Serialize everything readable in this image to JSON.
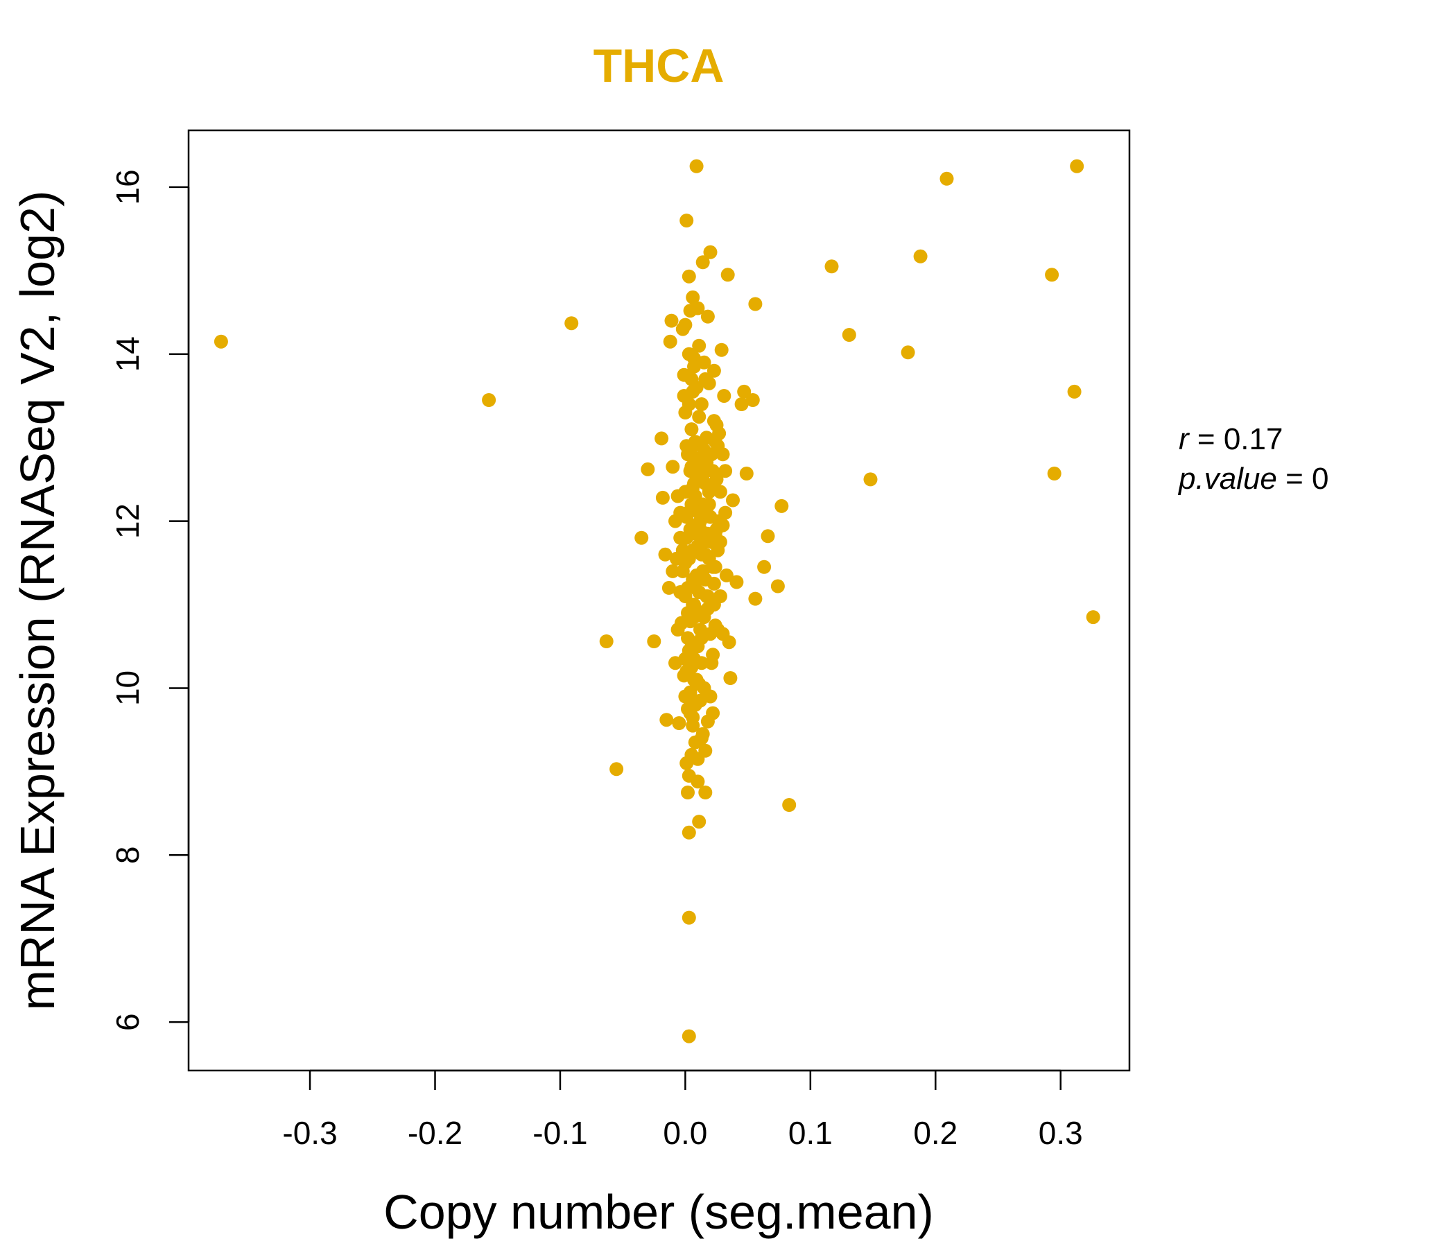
{
  "chart_data": {
    "type": "scatter",
    "title": "THCA",
    "xlabel": "Copy number (seg.mean)",
    "ylabel": "mRNA Expression (RNASeq V2, log2)",
    "xlim": [
      -0.397,
      0.355
    ],
    "ylim": [
      5.42,
      16.68
    ],
    "x_ticks": [
      -0.3,
      -0.2,
      -0.1,
      0.0,
      0.1,
      0.2,
      0.3
    ],
    "x_tick_labels": [
      "-0.3",
      "-0.2",
      "-0.1",
      "0.0",
      "0.1",
      "0.2",
      "0.3"
    ],
    "y_ticks": [
      6,
      8,
      10,
      12,
      14,
      16
    ],
    "y_tick_labels": [
      "6",
      "8",
      "10",
      "12",
      "14",
      "16"
    ],
    "colors": {
      "accent": "#E5AC00",
      "axis": "#000000"
    },
    "stats": {
      "r_label": "r",
      "eq": " = ",
      "r_value": "0.17",
      "p_label": "p.value",
      "p_value": "0"
    },
    "series": [
      {
        "points": [
          [
            -0.371,
            14.15
          ],
          [
            -0.157,
            13.45
          ],
          [
            -0.091,
            14.37
          ],
          [
            -0.063,
            10.56
          ],
          [
            -0.055,
            9.03
          ],
          [
            -0.035,
            11.8
          ],
          [
            -0.03,
            12.62
          ],
          [
            -0.025,
            10.56
          ],
          [
            -0.019,
            12.99
          ],
          [
            -0.018,
            12.28
          ],
          [
            -0.016,
            11.6
          ],
          [
            -0.015,
            9.62
          ],
          [
            -0.013,
            11.2
          ],
          [
            -0.012,
            14.15
          ],
          [
            -0.011,
            14.4
          ],
          [
            -0.01,
            12.65
          ],
          [
            -0.008,
            10.3
          ],
          [
            -0.007,
            11.55
          ],
          [
            -0.005,
            9.58
          ],
          [
            -0.004,
            11.8
          ],
          [
            -0.003,
            10.78
          ],
          [
            -0.002,
            14.3
          ],
          [
            -0.001,
            13.75
          ],
          [
            0.0,
            13.3
          ],
          [
            0.001,
            12.05
          ],
          [
            0.001,
            15.6
          ],
          [
            0.002,
            8.75
          ],
          [
            0.002,
            11.2
          ],
          [
            0.003,
            8.27
          ],
          [
            0.003,
            7.25
          ],
          [
            0.003,
            5.83
          ],
          [
            0.003,
            14.93
          ],
          [
            0.004,
            14.52
          ],
          [
            0.004,
            12.85
          ],
          [
            0.005,
            9.2
          ],
          [
            0.005,
            10.55
          ],
          [
            0.005,
            11.85
          ],
          [
            0.006,
            13.55
          ],
          [
            0.006,
            12.4
          ],
          [
            0.006,
            14.68
          ],
          [
            0.007,
            13.95
          ],
          [
            0.007,
            11.0
          ],
          [
            0.007,
            10.1
          ],
          [
            0.008,
            12.95
          ],
          [
            0.008,
            9.8
          ],
          [
            0.009,
            16.25
          ],
          [
            0.01,
            8.88
          ],
          [
            0.01,
            14.55
          ],
          [
            0.011,
            8.4
          ],
          [
            0.011,
            11.65
          ],
          [
            0.012,
            12.7
          ],
          [
            0.013,
            9.4
          ],
          [
            0.014,
            15.1
          ],
          [
            0.015,
            10.0
          ],
          [
            0.016,
            13.7
          ],
          [
            0.016,
            8.75
          ],
          [
            0.017,
            11.1
          ],
          [
            0.018,
            14.45
          ],
          [
            0.019,
            12.2
          ],
          [
            0.02,
            15.22
          ],
          [
            0.021,
            10.3
          ],
          [
            0.022,
            9.7
          ],
          [
            0.023,
            13.2
          ],
          [
            0.024,
            11.45
          ],
          [
            0.025,
            12.5
          ],
          [
            0.026,
            10.7
          ],
          [
            0.027,
            13.05
          ],
          [
            0.028,
            11.75
          ],
          [
            0.029,
            14.05
          ],
          [
            0.03,
            12.8
          ],
          [
            0.031,
            13.5
          ],
          [
            0.032,
            12.6
          ],
          [
            0.033,
            11.35
          ],
          [
            0.034,
            14.95
          ],
          [
            0.035,
            10.55
          ],
          [
            0.036,
            10.12
          ],
          [
            0.038,
            12.25
          ],
          [
            0.041,
            11.27
          ],
          [
            0.045,
            13.4
          ],
          [
            0.047,
            13.55
          ],
          [
            0.049,
            12.57
          ],
          [
            0.054,
            13.45
          ],
          [
            0.056,
            14.6
          ],
          [
            0.056,
            11.07
          ],
          [
            0.063,
            11.45
          ],
          [
            0.066,
            11.82
          ],
          [
            0.074,
            11.22
          ],
          [
            0.077,
            12.18
          ],
          [
            0.083,
            8.6
          ],
          [
            0.117,
            15.05
          ],
          [
            0.131,
            14.23
          ],
          [
            0.148,
            12.5
          ],
          [
            0.178,
            14.02
          ],
          [
            0.188,
            15.17
          ],
          [
            0.209,
            16.1
          ],
          [
            0.293,
            14.95
          ],
          [
            0.295,
            12.57
          ],
          [
            0.311,
            13.55
          ],
          [
            0.313,
            16.25
          ],
          [
            0.326,
            10.85
          ],
          [
            0.0,
            11.5
          ],
          [
            0.002,
            12.1
          ],
          [
            0.004,
            11.9
          ],
          [
            0.006,
            11.3
          ],
          [
            0.008,
            12.3
          ],
          [
            0.01,
            11.7
          ],
          [
            0.012,
            12.0
          ],
          [
            0.014,
            11.4
          ],
          [
            0.016,
            12.45
          ],
          [
            0.018,
            11.85
          ],
          [
            0.002,
            10.9
          ],
          [
            0.004,
            12.6
          ],
          [
            0.006,
            11.0
          ],
          [
            0.008,
            11.2
          ],
          [
            0.01,
            12.75
          ],
          [
            0.012,
            10.7
          ],
          [
            0.014,
            12.2
          ],
          [
            0.016,
            11.6
          ],
          [
            0.018,
            10.95
          ],
          [
            0.02,
            12.05
          ],
          [
            -0.002,
            11.4
          ],
          [
            0.0,
            12.35
          ],
          [
            0.003,
            10.45
          ],
          [
            0.005,
            13.1
          ],
          [
            0.007,
            11.95
          ],
          [
            0.009,
            12.55
          ],
          [
            0.011,
            11.15
          ],
          [
            0.013,
            12.9
          ],
          [
            0.015,
            11.75
          ],
          [
            0.017,
            12.15
          ],
          [
            0.019,
            11.55
          ],
          [
            0.021,
            12.4
          ],
          [
            0.023,
            11.25
          ],
          [
            0.025,
            11.9
          ],
          [
            0.027,
            12.0
          ],
          [
            -0.004,
            12.1
          ],
          [
            -0.002,
            11.65
          ],
          [
            0.001,
            10.2
          ],
          [
            0.003,
            13.4
          ],
          [
            0.005,
            12.65
          ],
          [
            0.007,
            10.85
          ],
          [
            0.009,
            11.35
          ],
          [
            0.011,
            13.25
          ],
          [
            0.013,
            10.6
          ],
          [
            0.015,
            12.85
          ],
          [
            0.004,
            9.95
          ],
          [
            0.006,
            9.55
          ],
          [
            0.008,
            9.35
          ],
          [
            0.01,
            9.15
          ],
          [
            0.012,
            9.85
          ],
          [
            0.014,
            9.45
          ],
          [
            0.016,
            9.25
          ],
          [
            0.018,
            9.6
          ],
          [
            0.02,
            9.9
          ],
          [
            0.022,
            10.4
          ],
          [
            0.0,
            9.9
          ],
          [
            0.002,
            9.75
          ],
          [
            0.001,
            9.1
          ],
          [
            0.003,
            8.95
          ],
          [
            0.006,
            9.65
          ],
          [
            0.007,
            13.85
          ],
          [
            0.009,
            13.6
          ],
          [
            0.011,
            14.1
          ],
          [
            0.013,
            13.4
          ],
          [
            0.015,
            13.9
          ],
          [
            0.017,
            13.0
          ],
          [
            0.019,
            13.65
          ],
          [
            0.021,
            12.8
          ],
          [
            0.023,
            13.8
          ],
          [
            0.025,
            13.15
          ],
          [
            0.003,
            14.0
          ],
          [
            0.005,
            13.7
          ],
          [
            -0.001,
            13.5
          ],
          [
            0.001,
            12.9
          ],
          [
            0.0,
            14.35
          ],
          [
            0.024,
            10.75
          ],
          [
            0.026,
            11.65
          ],
          [
            0.028,
            11.1
          ],
          [
            0.03,
            11.95
          ],
          [
            0.032,
            12.1
          ],
          [
            0.03,
            10.65
          ],
          [
            0.028,
            12.35
          ],
          [
            0.026,
            12.9
          ],
          [
            0.024,
            11.85
          ],
          [
            0.022,
            11.45
          ],
          [
            -0.006,
            12.3
          ],
          [
            -0.004,
            11.15
          ],
          [
            -0.006,
            10.7
          ],
          [
            -0.008,
            12.0
          ],
          [
            -0.01,
            11.4
          ],
          [
            0.0,
            11.1
          ],
          [
            0.001,
            11.8
          ],
          [
            0.002,
            12.8
          ],
          [
            0.003,
            11.55
          ],
          [
            0.004,
            10.8
          ],
          [
            0.005,
            12.2
          ],
          [
            0.006,
            11.65
          ],
          [
            0.007,
            12.45
          ],
          [
            0.008,
            10.95
          ],
          [
            0.009,
            11.85
          ],
          [
            0.01,
            10.5
          ],
          [
            0.011,
            12.1
          ],
          [
            0.012,
            11.9
          ],
          [
            0.013,
            11.6
          ],
          [
            0.014,
            12.55
          ],
          [
            0.015,
            10.85
          ],
          [
            0.016,
            11.3
          ],
          [
            0.017,
            12.7
          ],
          [
            0.018,
            11.1
          ],
          [
            0.019,
            12.35
          ],
          [
            0.02,
            10.65
          ],
          [
            0.021,
            11.75
          ],
          [
            0.022,
            12.6
          ],
          [
            0.023,
            11.0
          ],
          [
            0.024,
            12.95
          ],
          [
            0.005,
            10.25
          ],
          [
            0.007,
            10.35
          ],
          [
            0.009,
            10.1
          ],
          [
            0.011,
            10.05
          ],
          [
            0.013,
            10.3
          ],
          [
            0.0,
            10.35
          ],
          [
            0.002,
            10.6
          ],
          [
            -0.001,
            10.15
          ],
          [
            0.004,
            9.7
          ],
          [
            0.008,
            9.8
          ]
        ]
      }
    ]
  }
}
